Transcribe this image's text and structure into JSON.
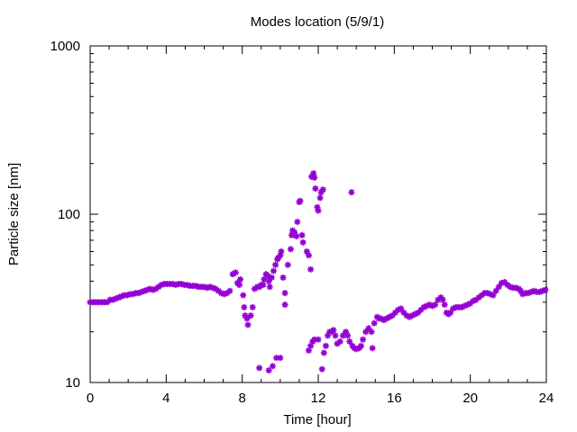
{
  "chart_data": {
    "type": "scatter",
    "title": "Modes location (5/9/1)",
    "xlabel": "Time [hour]",
    "ylabel": "Particle size [nm]",
    "xlim": [
      0,
      24
    ],
    "ylim": [
      10,
      1000
    ],
    "yscale": "log",
    "xticks": [
      "0",
      "4",
      "8",
      "12",
      "16",
      "20",
      "24"
    ],
    "yticks": [
      "10",
      "100",
      "1000"
    ],
    "grid": false,
    "marker": "asterisk",
    "color": "#9400D3",
    "series": [
      {
        "points": [
          [
            0.0,
            30
          ],
          [
            0.15,
            30
          ],
          [
            0.3,
            30
          ],
          [
            0.45,
            30
          ],
          [
            0.6,
            30
          ],
          [
            0.75,
            30
          ],
          [
            0.9,
            30
          ],
          [
            1.05,
            31
          ],
          [
            1.2,
            31
          ],
          [
            1.35,
            31.5
          ],
          [
            1.5,
            32
          ],
          [
            1.65,
            32.5
          ],
          [
            1.8,
            33
          ],
          [
            1.95,
            33
          ],
          [
            2.1,
            33.5
          ],
          [
            2.25,
            33.5
          ],
          [
            2.4,
            34
          ],
          [
            2.55,
            34
          ],
          [
            2.7,
            34.5
          ],
          [
            2.85,
            35
          ],
          [
            3.0,
            35.5
          ],
          [
            3.15,
            36
          ],
          [
            3.3,
            35.5
          ],
          [
            3.45,
            36
          ],
          [
            3.6,
            37
          ],
          [
            3.75,
            38
          ],
          [
            3.9,
            38.5
          ],
          [
            4.05,
            38.5
          ],
          [
            4.2,
            38.5
          ],
          [
            4.35,
            38.5
          ],
          [
            4.5,
            38
          ],
          [
            4.65,
            38.5
          ],
          [
            4.8,
            38.5
          ],
          [
            4.95,
            38
          ],
          [
            5.1,
            38
          ],
          [
            5.25,
            37.5
          ],
          [
            5.4,
            37.5
          ],
          [
            5.55,
            37.5
          ],
          [
            5.7,
            37
          ],
          [
            5.85,
            37
          ],
          [
            6.0,
            37
          ],
          [
            6.15,
            36.5
          ],
          [
            6.3,
            37
          ],
          [
            6.45,
            36.5
          ],
          [
            6.6,
            36
          ],
          [
            6.75,
            35
          ],
          [
            6.9,
            34
          ],
          [
            7.05,
            33.5
          ],
          [
            7.2,
            34
          ],
          [
            7.35,
            35
          ],
          [
            7.5,
            44
          ],
          [
            7.65,
            45
          ],
          [
            7.75,
            39
          ],
          [
            7.85,
            38
          ],
          [
            7.9,
            41
          ],
          [
            8.05,
            33
          ],
          [
            8.1,
            28
          ],
          [
            8.15,
            25
          ],
          [
            8.25,
            24
          ],
          [
            8.3,
            22
          ],
          [
            8.45,
            25
          ],
          [
            8.55,
            28
          ],
          [
            8.65,
            36
          ],
          [
            8.8,
            37
          ],
          [
            8.9,
            37
          ],
          [
            9.0,
            38
          ],
          [
            9.1,
            38
          ],
          [
            9.15,
            41
          ],
          [
            9.25,
            44
          ],
          [
            9.35,
            43
          ],
          [
            9.4,
            40
          ],
          [
            9.45,
            37
          ],
          [
            9.55,
            42
          ],
          [
            9.65,
            46
          ],
          [
            9.75,
            50
          ],
          [
            9.85,
            54
          ],
          [
            9.9,
            55
          ],
          [
            10.0,
            57
          ],
          [
            10.05,
            60
          ],
          [
            10.15,
            42
          ],
          [
            10.25,
            34
          ],
          [
            10.25,
            29
          ],
          [
            10.4,
            50
          ],
          [
            10.55,
            62
          ],
          [
            10.6,
            75
          ],
          [
            10.65,
            80
          ],
          [
            10.75,
            78
          ],
          [
            10.85,
            74
          ],
          [
            10.9,
            90
          ],
          [
            11.0,
            118
          ],
          [
            11.05,
            120
          ],
          [
            11.15,
            75
          ],
          [
            11.2,
            68
          ],
          [
            11.4,
            60
          ],
          [
            11.5,
            57
          ],
          [
            11.6,
            47
          ],
          [
            11.65,
            167
          ],
          [
            11.75,
            175
          ],
          [
            11.8,
            165
          ],
          [
            11.85,
            142
          ],
          [
            11.95,
            110
          ],
          [
            12.0,
            105
          ],
          [
            12.1,
            125
          ],
          [
            12.15,
            135
          ],
          [
            12.25,
            140
          ],
          [
            13.75,
            135
          ],
          [
            8.9,
            12.2
          ],
          [
            9.4,
            11.8
          ],
          [
            9.6,
            12.5
          ],
          [
            9.8,
            14
          ],
          [
            10.0,
            14
          ],
          [
            11.5,
            15.5
          ],
          [
            11.6,
            16.5
          ],
          [
            11.7,
            17.5
          ],
          [
            11.8,
            18
          ],
          [
            12.0,
            18
          ],
          [
            12.2,
            12
          ],
          [
            12.3,
            15
          ],
          [
            12.4,
            16.5
          ],
          [
            12.5,
            19
          ],
          [
            12.6,
            20
          ],
          [
            12.7,
            20
          ],
          [
            12.8,
            20.5
          ],
          [
            12.9,
            19
          ],
          [
            13.0,
            17
          ],
          [
            13.15,
            17.5
          ],
          [
            13.3,
            19
          ],
          [
            13.45,
            20
          ],
          [
            13.55,
            19
          ],
          [
            13.65,
            17.5
          ],
          [
            13.8,
            16.5
          ],
          [
            13.9,
            16
          ],
          [
            14.0,
            15.8
          ],
          [
            14.15,
            16
          ],
          [
            14.25,
            16.5
          ],
          [
            14.35,
            18
          ],
          [
            14.5,
            20
          ],
          [
            14.65,
            21
          ],
          [
            14.8,
            20
          ],
          [
            14.85,
            16
          ],
          [
            14.95,
            22.5
          ],
          [
            15.1,
            24.5
          ],
          [
            15.2,
            24
          ],
          [
            15.3,
            24
          ],
          [
            15.45,
            23.5
          ],
          [
            15.6,
            24
          ],
          [
            15.75,
            24.5
          ],
          [
            15.9,
            25
          ],
          [
            16.05,
            26
          ],
          [
            16.2,
            27
          ],
          [
            16.35,
            27.5
          ],
          [
            16.5,
            26
          ],
          [
            16.65,
            25
          ],
          [
            16.8,
            24.5
          ],
          [
            16.95,
            25
          ],
          [
            17.1,
            25.5
          ],
          [
            17.25,
            26
          ],
          [
            17.4,
            27
          ],
          [
            17.55,
            28
          ],
          [
            17.7,
            28.5
          ],
          [
            17.85,
            29
          ],
          [
            18.0,
            28.5
          ],
          [
            18.15,
            29
          ],
          [
            18.3,
            31
          ],
          [
            18.45,
            32
          ],
          [
            18.55,
            31
          ],
          [
            18.65,
            29
          ],
          [
            18.75,
            26
          ],
          [
            18.85,
            25.5
          ],
          [
            18.95,
            26
          ],
          [
            19.1,
            27.5
          ],
          [
            19.25,
            28
          ],
          [
            19.4,
            28
          ],
          [
            19.55,
            28
          ],
          [
            19.7,
            28.5
          ],
          [
            19.85,
            29
          ],
          [
            20.0,
            29.5
          ],
          [
            20.15,
            30.5
          ],
          [
            20.3,
            31
          ],
          [
            20.45,
            32
          ],
          [
            20.6,
            33
          ],
          [
            20.75,
            34
          ],
          [
            20.9,
            34
          ],
          [
            21.05,
            33.5
          ],
          [
            21.2,
            33
          ],
          [
            21.35,
            35
          ],
          [
            21.5,
            37
          ],
          [
            21.65,
            39
          ],
          [
            21.8,
            39.5
          ],
          [
            21.95,
            38
          ],
          [
            22.1,
            37
          ],
          [
            22.25,
            36.5
          ],
          [
            22.4,
            36.5
          ],
          [
            22.55,
            36
          ],
          [
            22.65,
            35
          ],
          [
            22.75,
            33.5
          ],
          [
            22.9,
            34
          ],
          [
            23.05,
            34
          ],
          [
            23.2,
            34.5
          ],
          [
            23.35,
            35
          ],
          [
            23.5,
            34.5
          ],
          [
            23.65,
            34.5
          ],
          [
            23.8,
            35
          ],
          [
            23.95,
            35.5
          ]
        ]
      }
    ]
  }
}
